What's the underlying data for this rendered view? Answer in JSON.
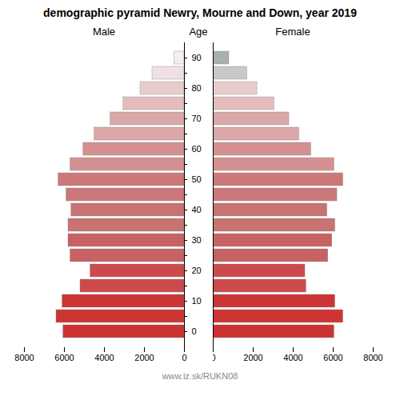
{
  "chart_data": {
    "type": "bar",
    "orientation": "horizontal",
    "title": "demographic pyramid Newry, Mourne and Down, year 2019",
    "ylabel": "Age",
    "caption": "www.iz.sk/RUKN08",
    "categories": [
      "0",
      null,
      "10",
      null,
      "20",
      null,
      "30",
      null,
      "40",
      null,
      "50",
      null,
      "60",
      null,
      "70",
      null,
      "80",
      null,
      "90"
    ],
    "series": [
      {
        "name": "Male",
        "values": [
          6050,
          6400,
          6100,
          5200,
          4700,
          5700,
          5800,
          5800,
          5650,
          5900,
          6300,
          5700,
          5050,
          4500,
          3700,
          3050,
          2200,
          1600,
          500
        ],
        "colors": [
          "#cd3232",
          "#cd3535",
          "#cd3535",
          "#cc4a4a",
          "#cc4a4a",
          "#c86262",
          "#c86262",
          "#c87272",
          "#c87272",
          "#cc7878",
          "#cc7878",
          "#d49090",
          "#d49090",
          "#daa8a8",
          "#daa8a8",
          "#e4bcbc",
          "#e8cccc",
          "#f0e0e4",
          "#f4eef0"
        ]
      },
      {
        "name": "Female",
        "values": [
          6050,
          6500,
          6100,
          4650,
          4600,
          5750,
          5950,
          6100,
          5700,
          6200,
          6500,
          6050,
          4900,
          4300,
          3800,
          3050,
          2200,
          1700,
          800
        ],
        "colors": [
          "#cd3232",
          "#cd3535",
          "#cd3535",
          "#cc4a4a",
          "#cc4a4a",
          "#c86262",
          "#c86262",
          "#c87272",
          "#c87272",
          "#cc7878",
          "#cc7878",
          "#d49090",
          "#d49090",
          "#daa8a8",
          "#daa8a8",
          "#e4bcbc",
          "#e8cccc",
          "#c8c8c8",
          "#a8b0b0"
        ]
      }
    ],
    "xlim": [
      0,
      8000
    ],
    "xticks": [
      0,
      2000,
      4000,
      6000,
      8000
    ],
    "grid": false
  }
}
